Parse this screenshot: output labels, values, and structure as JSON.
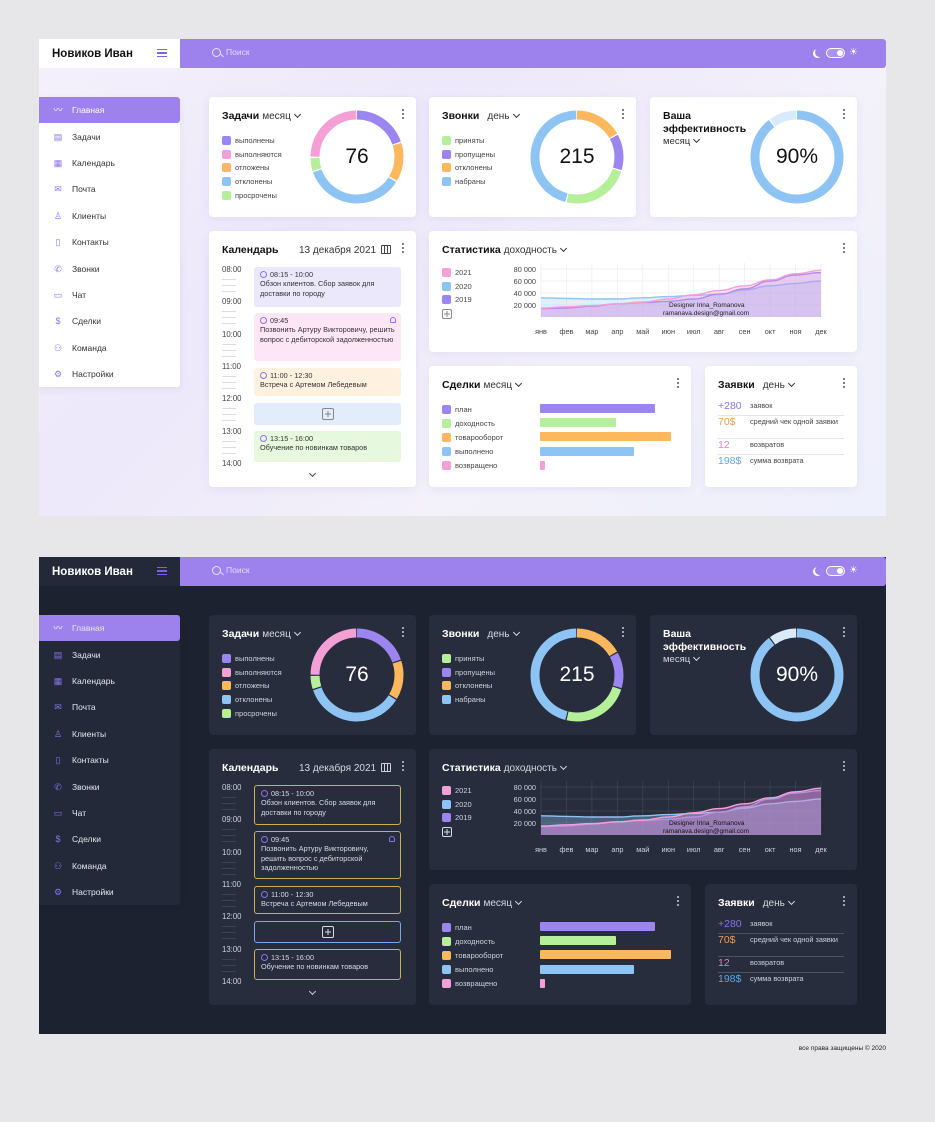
{
  "user": {
    "name": "Новиков  Иван"
  },
  "search": {
    "placeholder": "Поиск"
  },
  "icons": {
    "menu": "hamburger-icon",
    "search": "search-icon",
    "moon": "moon-icon",
    "sun": "sun-icon",
    "kebab": "kebab-icon"
  },
  "colors": {
    "accent": "#9d82ee",
    "purple": "#9b85ef",
    "pink": "#f59fd7",
    "orange": "#fdb85d",
    "blue": "#8ec4f4",
    "green": "#b5ef9a",
    "peach": "#fde3c7",
    "lightblue": "#d9eafb"
  },
  "nav": [
    {
      "label": "Главная",
      "icon": "pulse-icon",
      "glyph": "〰",
      "active": true
    },
    {
      "label": "Задачи",
      "icon": "document-icon",
      "glyph": "▤"
    },
    {
      "label": "Календарь",
      "icon": "calendar-icon",
      "glyph": "▦"
    },
    {
      "label": "Почта",
      "icon": "mail-icon",
      "glyph": "✉"
    },
    {
      "label": "Клиенты",
      "icon": "client-icon",
      "glyph": "♙"
    },
    {
      "label": "Контакты",
      "icon": "book-icon",
      "glyph": "▯"
    },
    {
      "label": "Звонки",
      "icon": "phone-icon",
      "glyph": "✆"
    },
    {
      "label": "Чат",
      "icon": "chat-icon",
      "glyph": "▭"
    },
    {
      "label": "Сделки",
      "icon": "dollar-icon",
      "glyph": "$"
    },
    {
      "label": "Команда",
      "icon": "team-icon",
      "glyph": "⚇"
    },
    {
      "label": "Настройки",
      "icon": "settings-icon",
      "glyph": "⚙"
    }
  ],
  "tasks": {
    "title": "Задачи",
    "period": "месяц",
    "value": "76",
    "legend_light": [
      "выполнены",
      "выполняются",
      "отложены",
      "отклонены",
      "просрочены"
    ],
    "legend_dark": [
      "выполнены",
      "выполняются",
      "отложены",
      "отклонены",
      "просрочены"
    ],
    "legend_colors": [
      "#9b85ef",
      "#f59fd7",
      "#fdb85d",
      "#8ec4f4",
      "#b5ef9a"
    ],
    "segments": [
      {
        "color": "#9b85ef",
        "value": 20
      },
      {
        "color": "#fdb85d",
        "value": 14
      },
      {
        "color": "#8ec4f4",
        "value": 36
      },
      {
        "color": "#b5ef9a",
        "value": 5
      },
      {
        "color": "#f59fd7",
        "value": 25
      }
    ]
  },
  "calls": {
    "title": "Звонки",
    "period": "день",
    "value": "215",
    "legend": [
      "приняты",
      "пропущены",
      "отклонены",
      "набраны"
    ],
    "legend_colors": [
      "#b5ef9a",
      "#9b85ef",
      "#fdb85d",
      "#8ec4f4"
    ],
    "segments": [
      {
        "color": "#fdb85d",
        "value": 17
      },
      {
        "color": "#9b85ef",
        "value": 13
      },
      {
        "color": "#b5ef9a",
        "value": 24
      },
      {
        "color": "#8ec4f4",
        "value": 46
      }
    ]
  },
  "efficiency": {
    "title_line1": "Ваша",
    "title_line2": "эффективность",
    "period": "месяц",
    "value": "90%",
    "percent": 90
  },
  "calendar": {
    "title": "Календарь",
    "date": "13 декабря 2021",
    "times": [
      "08:00",
      "09:00",
      "10:00",
      "11:00",
      "12:00",
      "13:00",
      "14:00"
    ],
    "events": [
      {
        "time": "08:15 - 10:00",
        "text": "Обзон клиентов. Сбор заявок для доставки по городу",
        "bell": false
      },
      {
        "time": "09:45",
        "text": "Позвонить Артуру Викторовичу, решить вопрос с дебиторской задолженностью",
        "bell": true
      },
      {
        "time": "11:00 - 12:30",
        "text": "Встреча с Артемом Лебедевым",
        "bell": false
      },
      {
        "time": "13:15 - 16:00",
        "text": "Обучение по новинкам товаров",
        "bell": false
      }
    ]
  },
  "statistics": {
    "title": "Статистика",
    "period": "доходность",
    "legend": [
      "2021",
      "2020",
      "2019"
    ],
    "legend_colors": [
      "#f59fd7",
      "#8ec4f4",
      "#9b85ef"
    ],
    "watermark_1": "Designer Irina_Romanova",
    "watermark_2": "ramanava.design@gmail.com"
  },
  "deals": {
    "title": "Сделки",
    "period": "месяц",
    "items": [
      {
        "label": "план",
        "color": "#9b85ef",
        "value": 0.88
      },
      {
        "label": "доходность",
        "color": "#b5ef9a",
        "value": 0.58
      },
      {
        "label": "товарооборот",
        "color": "#fdb85d",
        "value": 1.0
      },
      {
        "label": "выполнено",
        "color": "#8ec4f4",
        "value": 0.72
      },
      {
        "label": "возвращено",
        "color": "#f59fd7",
        "value": 0.04
      }
    ]
  },
  "requests": {
    "title": "Заявки",
    "period": "день",
    "rows": [
      {
        "value": "+280",
        "label": "заявок",
        "color": "#8a73e8"
      },
      {
        "value": "70$",
        "label": "средний чек одной заявки",
        "color": "#f39a52"
      },
      {
        "value": "12",
        "label": "возвратов",
        "color": "#e77ec7"
      },
      {
        "value": "198$",
        "label": "сумма возврата",
        "color": "#5aa5ea"
      }
    ]
  },
  "chart_data": {
    "type": "area",
    "title": "Статистика",
    "categories": [
      "янв",
      "фев",
      "мар",
      "апр",
      "май",
      "июн",
      "июл",
      "авг",
      "сен",
      "окт",
      "ноя",
      "дек"
    ],
    "y_ticks": [
      "80 000",
      "60 000",
      "40 000",
      "20 000"
    ],
    "ylim": [
      0,
      90000
    ],
    "series": [
      {
        "name": "2021",
        "color": "#f59fd7",
        "values": [
          15000,
          17000,
          19000,
          22000,
          25000,
          30000,
          37000,
          44000,
          52000,
          62000,
          72000,
          78000
        ]
      },
      {
        "name": "2020",
        "color": "#8ec4f4",
        "values": [
          32000,
          31000,
          30000,
          30000,
          32000,
          34000,
          36000,
          38000,
          45000,
          52000,
          56000,
          60000
        ]
      },
      {
        "name": "2019",
        "color": "#9b85ef",
        "values": [
          14000,
          15000,
          18000,
          22000,
          24000,
          26000,
          30000,
          38000,
          47000,
          60000,
          70000,
          74000
        ]
      }
    ],
    "grid": true
  },
  "footer": {
    "copyright": "все права защищены © 2020"
  }
}
